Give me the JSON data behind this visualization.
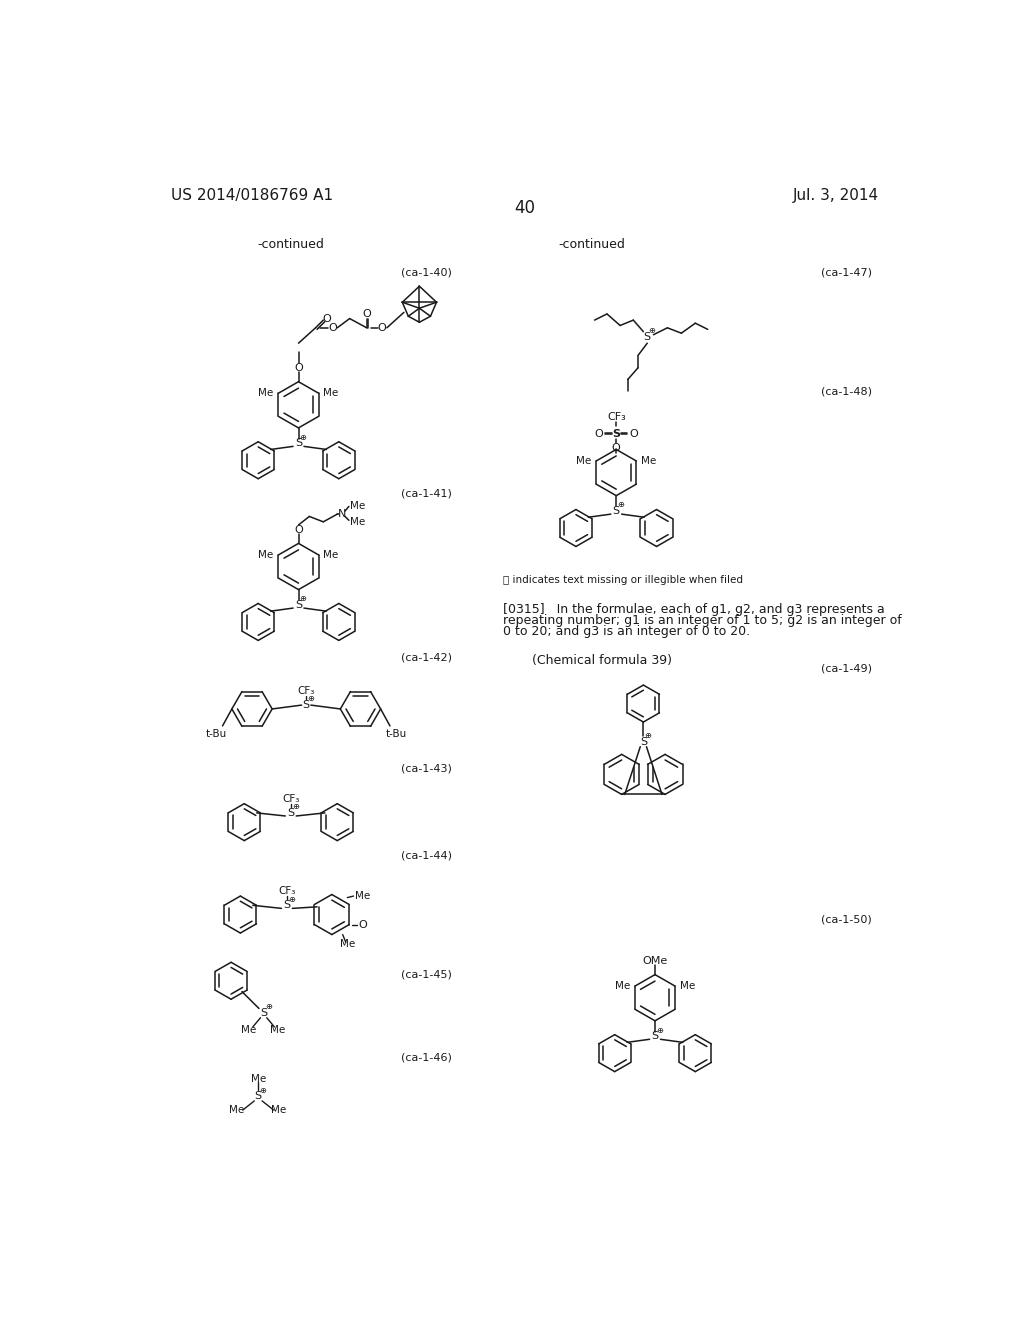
{
  "background_color": "#ffffff",
  "header_left": "US 2014/0186769 A1",
  "header_right": "Jul. 3, 2014",
  "page_number": "40",
  "continued_left": "-continued",
  "continued_right": "-continued",
  "label_ca1_40": "(ca-1-40)",
  "label_ca1_41": "(ca-1-41)",
  "label_ca1_42": "(ca-1-42)",
  "label_ca1_43": "(ca-1-43)",
  "label_ca1_44": "(ca-1-44)",
  "label_ca1_45": "(ca-1-45)",
  "label_ca1_46": "(ca-1-46)",
  "label_ca1_47": "(ca-1-47)",
  "label_ca1_48": "(ca-1-48)",
  "label_ca1_49": "(ca-1-49)",
  "label_ca1_50": "(ca-1-50)",
  "text_block_line1": "[0315]   In the formulae, each of g1, g2, and g3 represents a",
  "text_block_line2": "repeating number; g1 is an integer of 1 to 5; g2 is an integer of",
  "text_block_line3": "0 to 20; and g3 is an integer of 0 to 20.",
  "chem_formula_39": "(Chemical formula 39)",
  "illegible_note": "Ⓕ indicates text missing or illegible when filed",
  "text_color": "#1a1a1a"
}
